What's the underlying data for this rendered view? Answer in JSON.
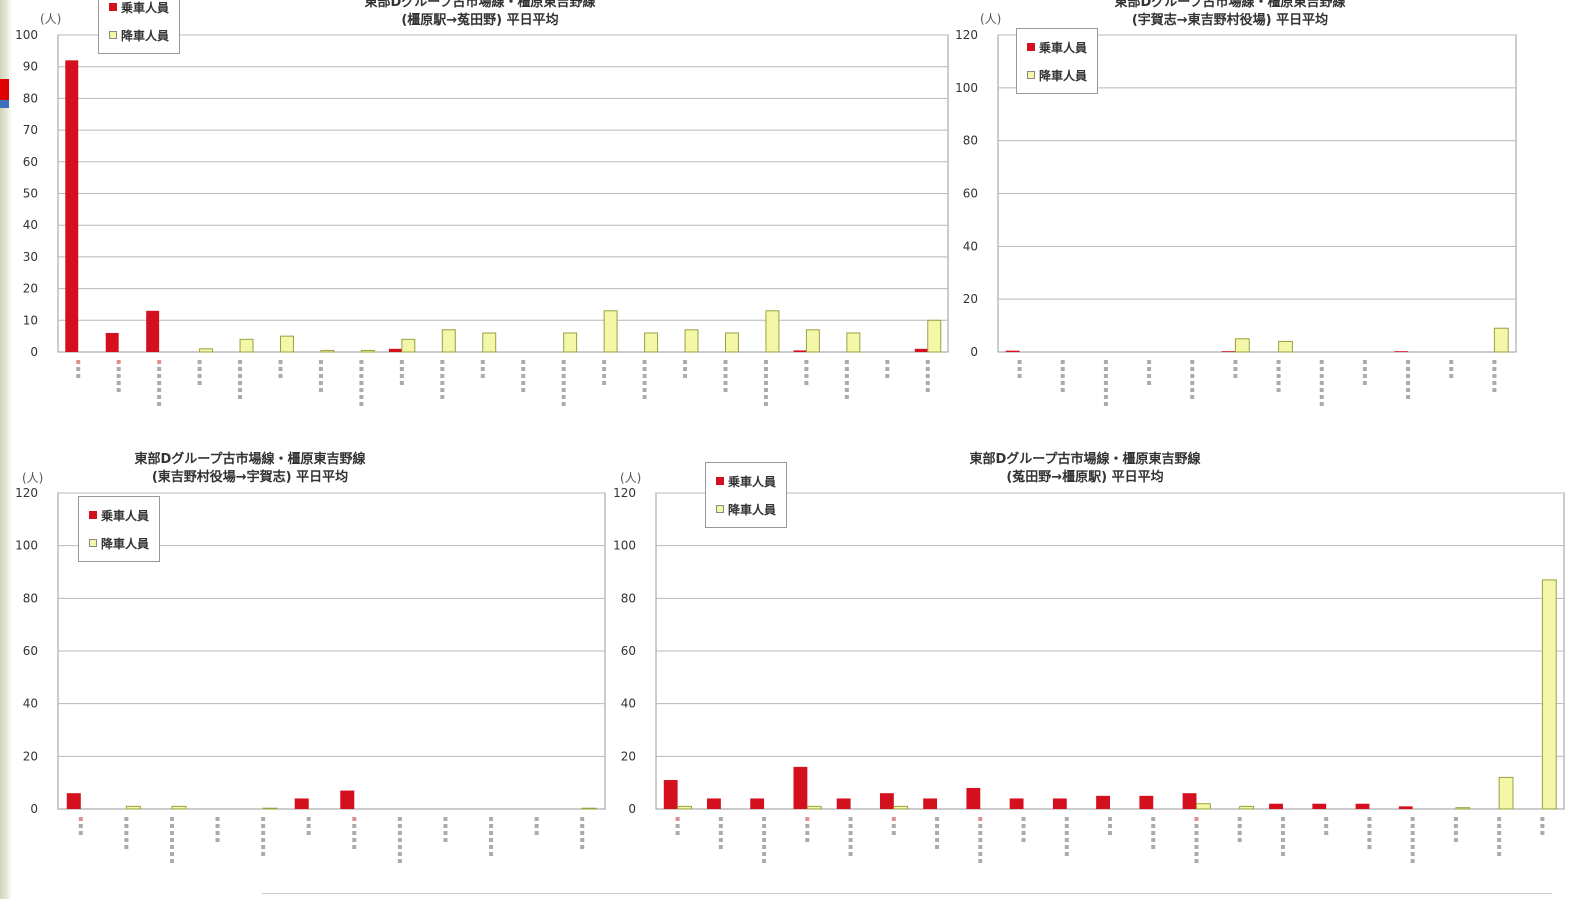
{
  "colors": {
    "boarding": "#d40f1e",
    "alighting": "#f4f7a8",
    "alighting_stroke": "#9aa040",
    "grid": "#b8b8b8"
  },
  "legend": {
    "boarding": "乗車人員",
    "alighting": "降車人員"
  },
  "unit_label": "(人)",
  "chart_data": [
    {
      "type": "bar",
      "title": "東部Dグループ古市場線・橿原東吉野線",
      "subtitle": "(橿原駅→菟田野) 平日平均",
      "ylim": [
        0,
        100
      ],
      "yticks": [
        0,
        10,
        20,
        30,
        40,
        50,
        60,
        70,
        80,
        90,
        100
      ],
      "legend_position": "top-left",
      "categories": [
        "",
        "",
        "",
        "",
        "",
        "",
        "",
        "",
        "",
        "",
        "",
        "",
        "",
        "",
        "",
        "",
        "",
        "",
        "",
        "",
        "",
        ""
      ],
      "series": [
        {
          "name": "乗車人員",
          "values": [
            92,
            6,
            13,
            0,
            0,
            0,
            0,
            0,
            1,
            0,
            0,
            0,
            0,
            0,
            0,
            0,
            0,
            0,
            0.5,
            0,
            0,
            1
          ]
        },
        {
          "name": "降車人員",
          "values": [
            0,
            0,
            0,
            1,
            4,
            5,
            0.5,
            0.5,
            4,
            7,
            6,
            0,
            6,
            13,
            6,
            7,
            6,
            13,
            7,
            6,
            0,
            10
          ]
        }
      ]
    },
    {
      "type": "bar",
      "title": "東部Dグループ古市場線・橿原東吉野線",
      "subtitle": "(宇賀志→東吉野村役場) 平日平均",
      "ylim": [
        0,
        120
      ],
      "yticks": [
        0,
        20,
        40,
        60,
        80,
        100,
        120
      ],
      "legend_position": "top-left",
      "categories": [
        "",
        "",
        "",
        "",
        "",
        "",
        "",
        "",
        "",
        "",
        "",
        ""
      ],
      "series": [
        {
          "name": "乗車人員",
          "values": [
            0.5,
            0,
            0,
            0,
            0,
            0.3,
            0,
            0,
            0,
            0.3,
            0,
            0
          ]
        },
        {
          "name": "降車人員",
          "values": [
            0,
            0,
            0,
            0,
            0,
            5,
            4,
            0,
            0,
            0,
            0,
            9
          ]
        }
      ]
    },
    {
      "type": "bar",
      "title": "東部Dグループ古市場線・橿原東吉野線",
      "subtitle": "(東吉野村役場→宇賀志) 平日平均",
      "ylim": [
        0,
        120
      ],
      "yticks": [
        0,
        20,
        40,
        60,
        80,
        100,
        120
      ],
      "legend_position": "top-left",
      "categories": [
        "",
        "",
        "",
        "",
        "",
        "",
        "",
        "",
        "",
        "",
        "",
        ""
      ],
      "series": [
        {
          "name": "乗車人員",
          "values": [
            6,
            0,
            0,
            0,
            0,
            4,
            7,
            0,
            0,
            0,
            0,
            0
          ]
        },
        {
          "name": "降車人員",
          "values": [
            0,
            1,
            1,
            0,
            0.3,
            0,
            0,
            0,
            0,
            0,
            0,
            0.3
          ]
        }
      ]
    },
    {
      "type": "bar",
      "title": "東部Dグループ古市場線・橿原東吉野線",
      "subtitle": "(菟田野→橿原駅) 平日平均",
      "ylim": [
        0,
        120
      ],
      "yticks": [
        0,
        20,
        40,
        60,
        80,
        100,
        120
      ],
      "legend_position": "top-left",
      "categories": [
        "",
        "",
        "",
        "",
        "",
        "",
        "",
        "",
        "",
        "",
        "",
        "",
        "",
        "",
        "",
        "",
        "",
        "",
        "",
        "",
        ""
      ],
      "series": [
        {
          "name": "乗車人員",
          "values": [
            11,
            4,
            4,
            16,
            4,
            6,
            4,
            8,
            4,
            4,
            5,
            5,
            6,
            0,
            2,
            2,
            2,
            1,
            0,
            0,
            0
          ]
        },
        {
          "name": "降車人員",
          "values": [
            1,
            0,
            0,
            1,
            0,
            1,
            0,
            0,
            0,
            0,
            0,
            0,
            2,
            1,
            0,
            0,
            0,
            0,
            0.5,
            12,
            87
          ]
        }
      ]
    }
  ]
}
